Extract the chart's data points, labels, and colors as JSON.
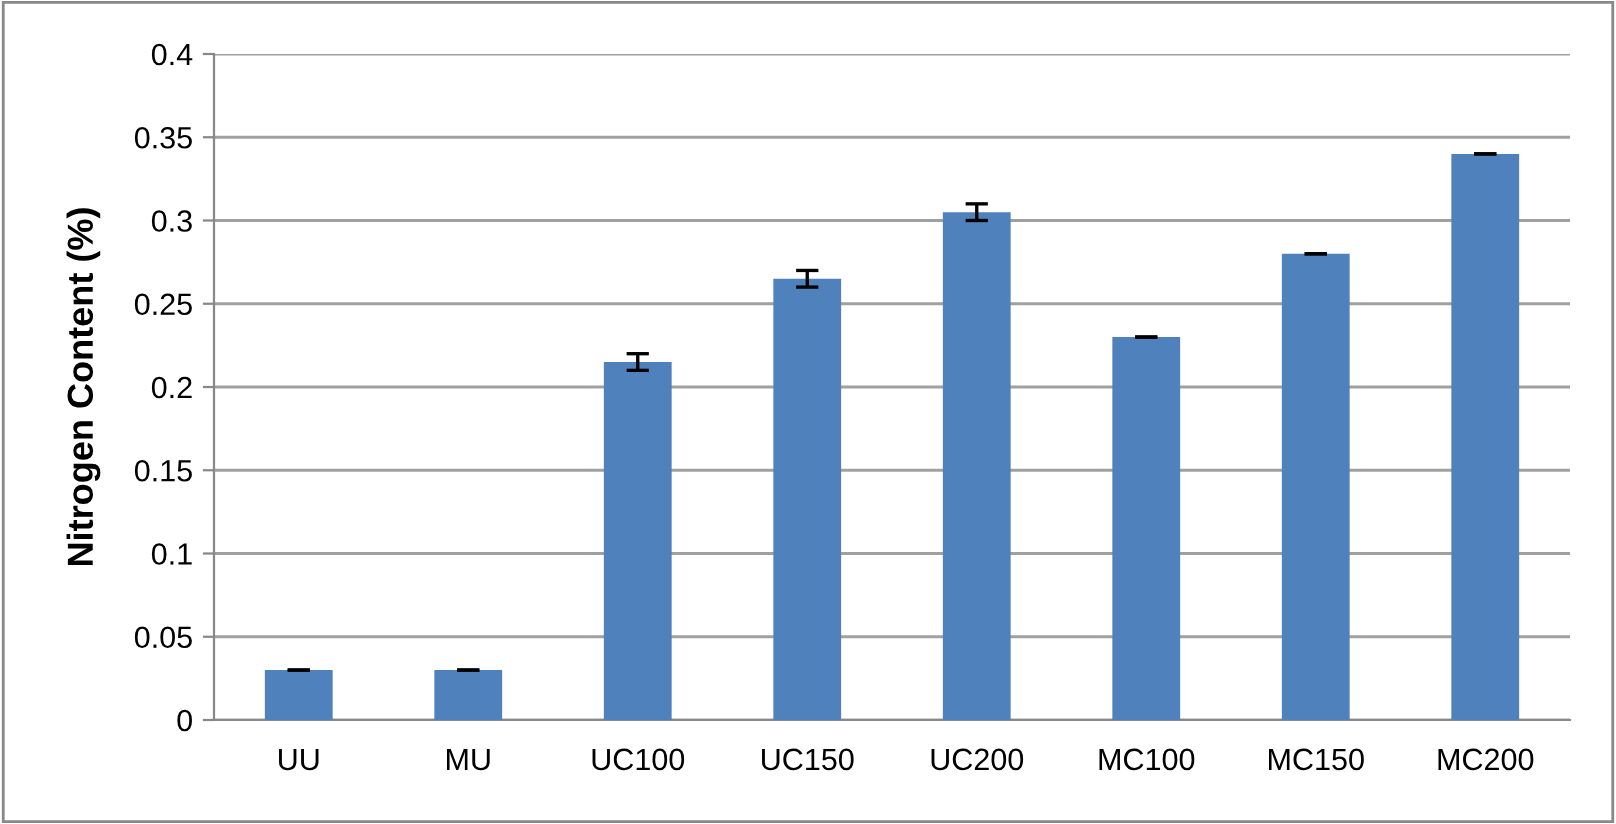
{
  "chart_data": {
    "type": "bar",
    "ylabel": "Nitrogen Content (%)",
    "categories": [
      "UU",
      "MU",
      "UC100",
      "UC150",
      "UC200",
      "MC100",
      "MC150",
      "MC200"
    ],
    "values": [
      0.03,
      0.03,
      0.215,
      0.265,
      0.305,
      0.23,
      0.28,
      0.34
    ],
    "errors": [
      0,
      0,
      0.005,
      0.005,
      0.005,
      0,
      0,
      0
    ],
    "color": "#4f81bd",
    "ylim": [
      0,
      0.4
    ],
    "yticks": [
      0,
      0.05,
      0.1,
      0.15,
      0.2,
      0.25,
      0.3,
      0.35,
      0.4
    ],
    "grid": "y",
    "legend": false
  }
}
